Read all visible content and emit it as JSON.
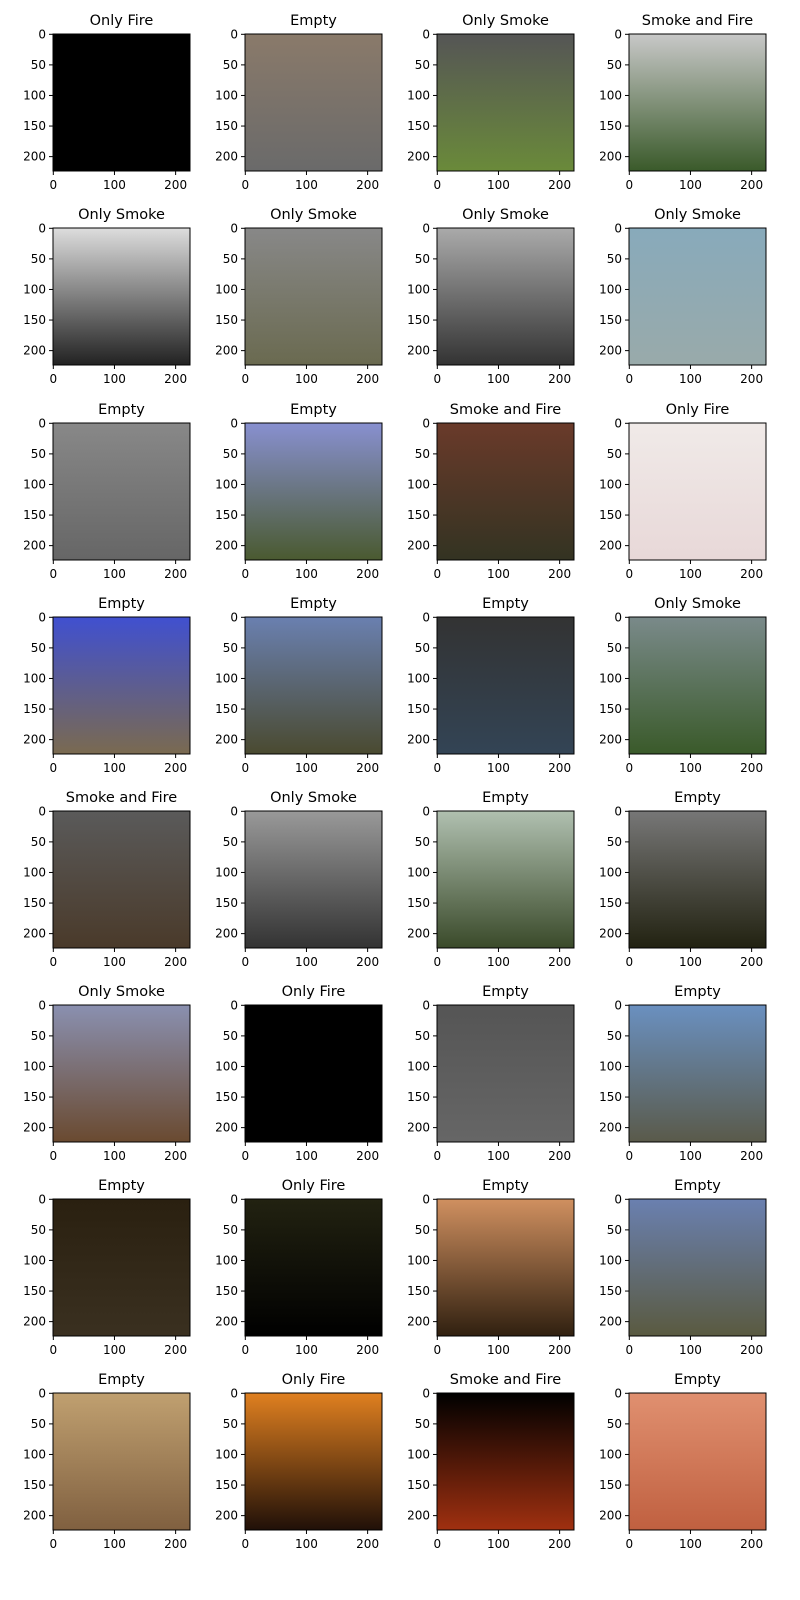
{
  "axes": {
    "xlim": [
      -0.5,
      223.5
    ],
    "ylim": [
      223.5,
      -0.5
    ],
    "xticks": [
      0,
      100,
      200
    ],
    "yticks": [
      0,
      50,
      100,
      150,
      200
    ]
  },
  "panels": [
    {
      "title": "Only Fire",
      "colors": [
        "#000000",
        "#000000"
      ]
    },
    {
      "title": "Empty",
      "colors": [
        "#8a7a6a",
        "#6a6a6a"
      ]
    },
    {
      "title": "Only Smoke",
      "colors": [
        "#555555",
        "#6a8a3a"
      ]
    },
    {
      "title": "Smoke and Fire",
      "colors": [
        "#c8c8c8",
        "#3a5a2a"
      ]
    },
    {
      "title": "Only Smoke",
      "colors": [
        "#dddddd",
        "#222222"
      ]
    },
    {
      "title": "Only Smoke",
      "colors": [
        "#888888",
        "#6a6a50"
      ]
    },
    {
      "title": "Only Smoke",
      "colors": [
        "#aaaaaa",
        "#333333"
      ]
    },
    {
      "title": "Only Smoke",
      "colors": [
        "#88aabb",
        "#99aaaa"
      ]
    },
    {
      "title": "Empty",
      "colors": [
        "#888888",
        "#666666"
      ]
    },
    {
      "title": "Empty",
      "colors": [
        "#8890d0",
        "#4a5a30"
      ]
    },
    {
      "title": "Smoke and Fire",
      "colors": [
        "#6a3a2a",
        "#333322"
      ]
    },
    {
      "title": "Only Fire",
      "colors": [
        "#f0eae8",
        "#e8d8d8"
      ]
    },
    {
      "title": "Empty",
      "colors": [
        "#4050d0",
        "#7a6a50"
      ]
    },
    {
      "title": "Empty",
      "colors": [
        "#6a80b0",
        "#4a4a30"
      ]
    },
    {
      "title": "Empty",
      "colors": [
        "#333333",
        "#334455"
      ]
    },
    {
      "title": "Only Smoke",
      "colors": [
        "#7a8a8a",
        "#3a5a2a"
      ]
    },
    {
      "title": "Smoke and Fire",
      "colors": [
        "#5a5a5a",
        "#4a3a2a"
      ]
    },
    {
      "title": "Only Smoke",
      "colors": [
        "#999999",
        "#333333"
      ]
    },
    {
      "title": "Empty",
      "colors": [
        "#b0c0b0",
        "#3a4a2a"
      ]
    },
    {
      "title": "Empty",
      "colors": [
        "#777777",
        "#222211"
      ]
    },
    {
      "title": "Only Smoke",
      "colors": [
        "#8a90b0",
        "#6a4a30"
      ]
    },
    {
      "title": "Only Fire",
      "colors": [
        "#000000",
        "#000000"
      ]
    },
    {
      "title": "Empty",
      "colors": [
        "#555555",
        "#666666"
      ]
    },
    {
      "title": "Empty",
      "colors": [
        "#6a90c0",
        "#5a5a4a"
      ]
    },
    {
      "title": "Empty",
      "colors": [
        "#2a2010",
        "#3a3020"
      ]
    },
    {
      "title": "Only Fire",
      "colors": [
        "#222211",
        "#000000"
      ]
    },
    {
      "title": "Empty",
      "colors": [
        "#d09060",
        "#302010"
      ]
    },
    {
      "title": "Empty",
      "colors": [
        "#6a80b0",
        "#5a5a40"
      ]
    },
    {
      "title": "Empty",
      "colors": [
        "#c0a070",
        "#806040"
      ]
    },
    {
      "title": "Only Fire",
      "colors": [
        "#e08020",
        "#201008"
      ]
    },
    {
      "title": "Smoke and Fire",
      "colors": [
        "#000000",
        "#a03010"
      ]
    },
    {
      "title": "Empty",
      "colors": [
        "#e09070",
        "#c06040"
      ]
    }
  ]
}
